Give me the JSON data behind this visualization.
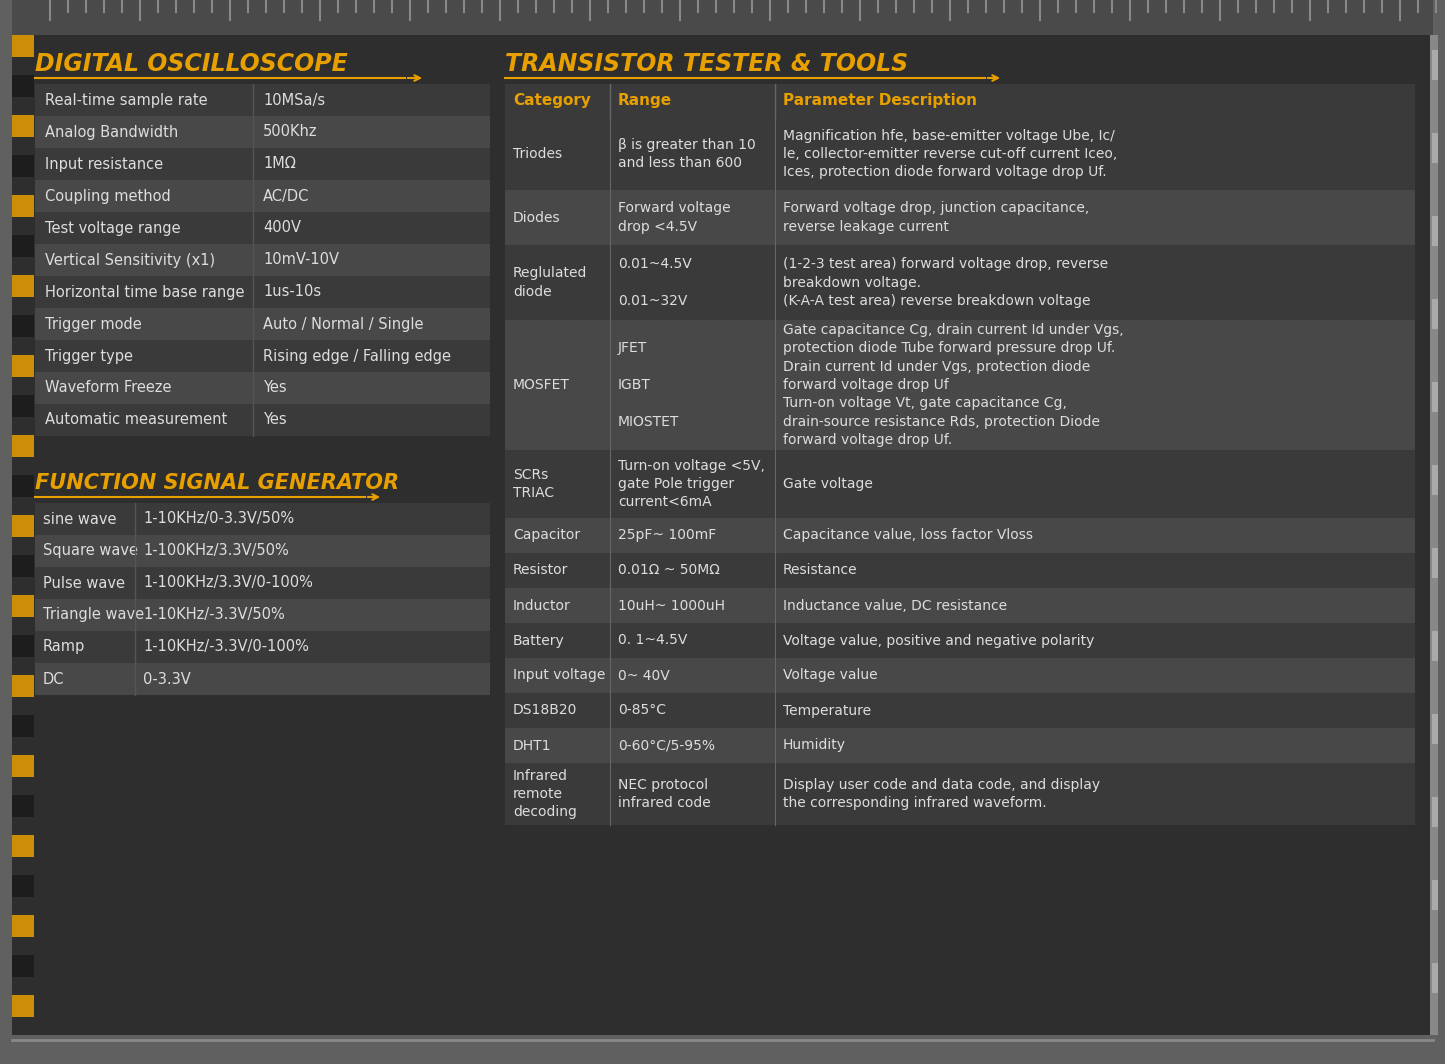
{
  "bg_color": "#333333",
  "outer_bg": "#606060",
  "panel_bg": "#2e2e2e",
  "table_dark": "#3a3a3a",
  "table_light": "#484848",
  "header_bg": "#3a3a3a",
  "orange": "#e8a000",
  "white": "#dddddd",
  "divider": "#606060",
  "yellow_stripe": "#e8a000",
  "title_left": "DIGITAL OSCILLOSCOPE",
  "title_right": "TRANSISTOR TESTER & TOOLS",
  "osc_rows": [
    [
      "Real-time sample rate",
      "10MSa/s"
    ],
    [
      "Analog Bandwidth",
      "500Khz"
    ],
    [
      "Input resistance",
      "1MΩ"
    ],
    [
      "Coupling method",
      "AC/DC"
    ],
    [
      "Test voltage range",
      "400V"
    ],
    [
      "Vertical Sensitivity (x1)",
      "10mV-10V"
    ],
    [
      "Horizontal time base range",
      "1us-10s"
    ],
    [
      "Trigger mode",
      "Auto / Normal / Single"
    ],
    [
      "Trigger type",
      "Rising edge / Falling edge"
    ],
    [
      "Waveform Freeze",
      "Yes"
    ],
    [
      "Automatic measurement",
      "Yes"
    ]
  ],
  "sig_title": "FUNCTION SIGNAL GENERATOR",
  "sig_rows": [
    [
      "sine wave",
      "1-10KHz/0-3.3V/50%"
    ],
    [
      "Square wave",
      "1-100KHz/3.3V/50%"
    ],
    [
      "Pulse wave",
      "1-100KHz/3.3V/0-100%"
    ],
    [
      "Triangle wave",
      "1-10KHz/-3.3V/50%"
    ],
    [
      "Ramp",
      "1-10KHz/-3.3V/0-100%"
    ],
    [
      "DC",
      "0-3.3V"
    ]
  ],
  "trans_headers": [
    "Category",
    "Range",
    "Parameter Description"
  ],
  "trans_rows": [
    [
      "Triodes",
      "β is greater than 10\nand less than 600",
      "Magnification hfe, base-emitter voltage Ube, Ic/\nle, collector-emitter reverse cut-off current Iceo,\nIces, protection diode forward voltage drop Uf."
    ],
    [
      "Diodes",
      "Forward voltage\ndrop <4.5V",
      "Forward voltage drop, junction capacitance,\nreverse leakage current"
    ],
    [
      "Reglulated\ndiode",
      "0.01~4.5V\n\n0.01~32V",
      "(1-2-3 test area) forward voltage drop, reverse\nbreakdown voltage.\n(K-A-A test area) reverse breakdown voltage"
    ],
    [
      "MOSFET",
      "JFET\n\nIGBT\n\nMIOSTET",
      "Gate capacitance Cg, drain current Id under Vgs,\nprotection diode Tube forward pressure drop Uf.\nDrain current Id under Vgs, protection diode\nforward voltage drop Uf\nTurn-on voltage Vt, gate capacitance Cg,\ndrain-source resistance Rds, protection Diode\nforward voltage drop Uf."
    ],
    [
      "SCRs\nTRIAC",
      "Turn-on voltage <5V,\ngate Pole trigger\ncurrent<6mA",
      "Gate voltage"
    ],
    [
      "Capacitor",
      "25pF~ 100mF",
      "Capacitance value, loss factor Vloss"
    ],
    [
      "Resistor",
      "0.01Ω ~ 50MΩ",
      "Resistance"
    ],
    [
      "Inductor",
      "10uH~ 1000uH",
      "Inductance value, DC resistance"
    ],
    [
      "Battery",
      "0. 1~4.5V",
      "Voltage value, positive and negative polarity"
    ],
    [
      "Input voltage",
      "0~ 40V",
      "Voltage value"
    ],
    [
      "DS18B20",
      "0-85°C",
      "Temperature"
    ],
    [
      "DHT1",
      "0-60°C/5-95%",
      "Humidity"
    ],
    [
      "Infrared\nremote\ndecoding",
      "NEC protocol\ninfrared code",
      "Display user code and data code, and display\nthe corresponding infrared waveform."
    ]
  ],
  "trans_row_heights": [
    72,
    55,
    75,
    130,
    68,
    35,
    35,
    35,
    35,
    35,
    35,
    35,
    62
  ]
}
